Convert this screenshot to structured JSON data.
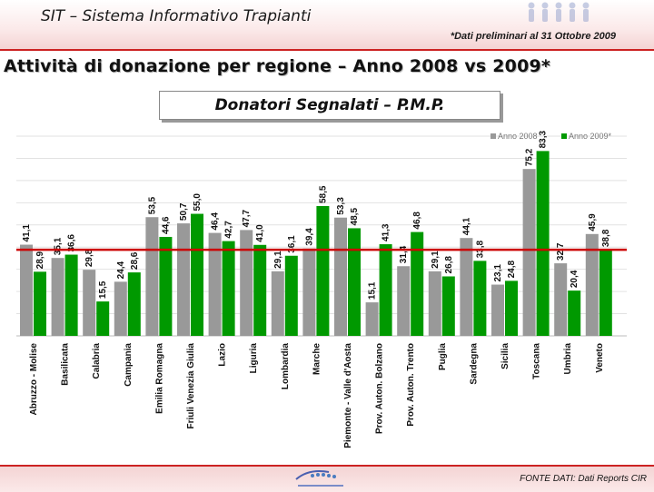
{
  "header": {
    "app_title": "SIT – Sistema Informativo Trapianti",
    "note": "*Dati preliminari al 31 Ottobre 2009"
  },
  "page_title": "Attività di donazione per regione – Anno 2008 vs 2009*",
  "footer": {
    "source": "FONTE DATI: Dati Reports CIR"
  },
  "colors": {
    "series_2008": "#999999",
    "series_2009": "#009900",
    "reference_line": "#cc0000"
  },
  "chart_data": {
    "type": "bar",
    "title": "Donatori Segnalati – P.M.P.",
    "categories": [
      "Abruzzo - Molise",
      "Basilicata",
      "Calabria",
      "Campania",
      "Emilia Romagna",
      "Friuli Venezia Giulia",
      "Lazio",
      "Liguria",
      "Lombardia",
      "Marche",
      "Piemonte - Valle d'Aosta",
      "Prov. Auton. Bolzano",
      "Prov. Auton. Trento",
      "Puglia",
      "Sardegna",
      "Sicilia",
      "Toscana",
      "Umbria",
      "Veneto"
    ],
    "series": [
      {
        "name": "Anno 2008",
        "values": [
          41.1,
          35.1,
          29.8,
          24.4,
          53.5,
          50.7,
          46.4,
          47.7,
          29.1,
          39.4,
          53.3,
          15.1,
          31.4,
          29.1,
          44.1,
          23.1,
          75.2,
          32.7,
          45.9
        ],
        "labels": [
          "41,1",
          "35,1",
          "29,8",
          "24,4",
          "53,5",
          "50,7",
          "46,4",
          "47,7",
          "29,1",
          "39,4",
          "53,3",
          "15,1",
          "31,4",
          "29,1",
          "44,1",
          "23,1",
          "75,2",
          "32,7",
          "45,9"
        ]
      },
      {
        "name": "Anno 2009*",
        "values": [
          28.9,
          36.6,
          15.5,
          28.6,
          44.6,
          55.0,
          42.7,
          41.0,
          36.1,
          58.5,
          48.5,
          41.3,
          46.8,
          26.8,
          33.8,
          24.8,
          83.3,
          20.4,
          38.8
        ],
        "labels": [
          "28,9",
          "36,6",
          "15,5",
          "28,6",
          "44,6",
          "55,0",
          "42,7",
          "41,0",
          "36,1",
          "58,5",
          "48,5",
          "41,3",
          "46,8",
          "26,8",
          "33,8",
          "24,8",
          "83,3",
          "20,4",
          "38,8"
        ]
      }
    ],
    "reference_line_value": 38.8,
    "ylim": [
      0,
      90
    ],
    "grid": true,
    "legend": "top-right",
    "xlabel": "",
    "ylabel": ""
  }
}
